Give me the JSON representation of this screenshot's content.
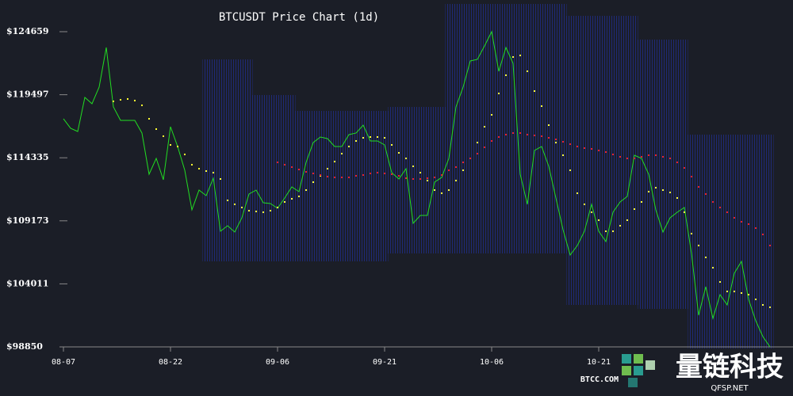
{
  "chart_data": {
    "type": "line",
    "title": "BTCUSDT Price Chart (1d)",
    "categories": [
      "08-07",
      null,
      null,
      null,
      null,
      null,
      null,
      null,
      null,
      null,
      null,
      null,
      null,
      null,
      null,
      "08-22",
      null,
      null,
      null,
      null,
      null,
      null,
      null,
      null,
      null,
      null,
      null,
      null,
      null,
      null,
      "09-06",
      null,
      null,
      null,
      null,
      null,
      null,
      null,
      null,
      null,
      null,
      null,
      null,
      null,
      null,
      "09-21",
      null,
      null,
      null,
      null,
      null,
      null,
      null,
      null,
      null,
      null,
      null,
      null,
      null,
      null,
      "10-06",
      null,
      null,
      null,
      null,
      null,
      null,
      null,
      null,
      null,
      null,
      null,
      null,
      null,
      null,
      "10-21",
      null,
      null,
      null,
      null,
      null,
      null,
      null,
      null,
      null,
      null,
      null,
      null,
      null,
      null,
      null,
      null,
      null,
      null,
      null,
      null,
      null,
      null,
      null,
      null
    ],
    "series": [
      {
        "style": "line",
        "color": "#22dd22",
        "values": [
          117527,
          116749,
          116489,
          119278,
          118759,
          120121,
          123363,
          118500,
          117397,
          117397,
          117397,
          116360,
          112987,
          114284,
          112533,
          116878,
          115257,
          113312,
          110069,
          111690,
          111236,
          112663,
          108318,
          108772,
          108253,
          109421,
          111366,
          111690,
          110653,
          110588,
          110199,
          111042,
          111950,
          111561,
          113960,
          115581,
          116035,
          115906,
          115257,
          115257,
          116230,
          116360,
          117008,
          115711,
          115711,
          115387,
          113117,
          112598,
          113441,
          108967,
          109615,
          109615,
          112339,
          112728,
          114284,
          118500,
          120121,
          122261,
          122391,
          123493,
          124659,
          121418,
          123363,
          122066,
          112987,
          110523,
          114933,
          115257,
          113636,
          111042,
          108448,
          106373,
          107151,
          108318,
          110523,
          108318,
          107475,
          109875,
          110718,
          111172,
          114544,
          114284,
          112987,
          110069,
          108253,
          109421,
          109875,
          110264,
          106502,
          101444,
          103779,
          101185,
          103130,
          102287,
          104881,
          105854,
          102741,
          100990,
          99693,
          98850
        ]
      },
      {
        "style": "dots",
        "color": "#ffff33",
        "values": [
          null,
          null,
          null,
          null,
          null,
          null,
          null,
          118954,
          119083,
          119148,
          119018,
          118629,
          117527,
          116684,
          116100,
          115387,
          115257,
          114609,
          113766,
          113441,
          113247,
          113117,
          112598,
          110847,
          110523,
          110264,
          110004,
          109939,
          109875,
          110004,
          110264,
          110718,
          110977,
          111172,
          111690,
          112339,
          112858,
          113441,
          114025,
          114673,
          115257,
          115711,
          115970,
          116035,
          116035,
          115970,
          115387,
          114738,
          114284,
          113636,
          113117,
          112469,
          111690,
          111431,
          111690,
          112469,
          113312,
          114284,
          115581,
          116878,
          117851,
          119602,
          121094,
          122585,
          122715,
          121418,
          119797,
          118564,
          117008,
          115581,
          114544,
          113312,
          111431,
          110523,
          109875,
          109226,
          108318,
          108318,
          108772,
          109226,
          110134,
          110718,
          111561,
          111885,
          111690,
          111496,
          111042,
          109875,
          108124,
          107151,
          106178,
          105335,
          104168,
          103390,
          103390,
          103260,
          103130,
          102741,
          102287,
          102093
        ]
      },
      {
        "style": "dots",
        "color": "#ee2222",
        "values": [
          null,
          null,
          null,
          null,
          null,
          null,
          null,
          null,
          null,
          null,
          null,
          null,
          null,
          null,
          null,
          null,
          null,
          null,
          null,
          null,
          null,
          null,
          null,
          null,
          null,
          null,
          null,
          null,
          null,
          null,
          113960,
          113766,
          113571,
          113376,
          113182,
          113052,
          112922,
          112793,
          112728,
          112728,
          112728,
          112858,
          112922,
          113052,
          113117,
          113052,
          112987,
          112858,
          112663,
          112598,
          112598,
          112663,
          112728,
          112922,
          113312,
          113571,
          113960,
          114284,
          114673,
          115192,
          115711,
          116035,
          116230,
          116360,
          116360,
          116230,
          116165,
          116100,
          115970,
          115841,
          115646,
          115452,
          115257,
          115127,
          115063,
          114933,
          114803,
          114609,
          114414,
          114284,
          114284,
          114414,
          114544,
          114544,
          114414,
          114284,
          113960,
          113506,
          112793,
          111950,
          111366,
          110718,
          110264,
          109875,
          109421,
          109096,
          108902,
          108578,
          108059,
          107151
        ]
      }
    ],
    "band": {
      "color": "#1c2566",
      "upper": [
        null,
        null,
        null,
        null,
        null,
        null,
        null,
        null,
        null,
        null,
        null,
        null,
        null,
        null,
        null,
        null,
        null,
        null,
        null,
        null,
        122391,
        122391,
        122391,
        122391,
        122391,
        122391,
        122391,
        119472,
        119472,
        119472,
        119472,
        119472,
        119472,
        118175,
        118175,
        118175,
        118175,
        118175,
        118175,
        118175,
        118175,
        118175,
        118175,
        118175,
        118175,
        118175,
        118500,
        118500,
        118500,
        118500,
        118500,
        118500,
        118500,
        118500,
        126930,
        126930,
        126930,
        126930,
        126930,
        126930,
        126930,
        126930,
        126930,
        126930,
        126930,
        126930,
        126930,
        126930,
        126930,
        126930,
        126930,
        125957,
        125957,
        125957,
        125957,
        125957,
        125957,
        125957,
        125957,
        125957,
        125957,
        124012,
        124012,
        124012,
        124012,
        124012,
        124012,
        124012,
        116230,
        116230,
        116230,
        116230,
        116230,
        116230,
        116230,
        116230,
        116230,
        116230,
        116230,
        116230
      ],
      "lower": [
        null,
        null,
        null,
        null,
        null,
        null,
        null,
        null,
        null,
        null,
        null,
        null,
        null,
        null,
        null,
        null,
        null,
        null,
        null,
        null,
        105854,
        105854,
        105854,
        105854,
        105854,
        105854,
        105854,
        105854,
        105854,
        105854,
        105854,
        105854,
        105854,
        105854,
        105854,
        105854,
        105854,
        105854,
        105854,
        105854,
        105854,
        105854,
        105854,
        105854,
        105854,
        105854,
        106502,
        106502,
        106502,
        106502,
        106502,
        106502,
        106502,
        106502,
        106502,
        106502,
        106502,
        106502,
        106502,
        106502,
        106502,
        106502,
        106502,
        106502,
        106502,
        106502,
        106502,
        106502,
        106502,
        106502,
        106502,
        102287,
        102287,
        102287,
        102287,
        102287,
        102287,
        102287,
        102287,
        102287,
        102287,
        101963,
        101963,
        101963,
        101963,
        101963,
        101963,
        101963,
        98720,
        98720,
        98720,
        98720,
        98720,
        98720,
        98720,
        98720,
        98720,
        98720,
        98720,
        98720
      ]
    },
    "ylim": [
      98850,
      124659
    ],
    "yticks": [
      {
        "value": 98850,
        "label": "$98850"
      },
      {
        "value": 104011,
        "label": "$104011"
      },
      {
        "value": 109173,
        "label": "$109173"
      },
      {
        "value": 114335,
        "label": "$114335"
      },
      {
        "value": 119497,
        "label": "$119497"
      },
      {
        "value": 124659,
        "label": "$124659"
      }
    ]
  },
  "watermark": {
    "source": "BTCC.COM",
    "brand": "量链科技",
    "site": "QFSP.NET"
  }
}
